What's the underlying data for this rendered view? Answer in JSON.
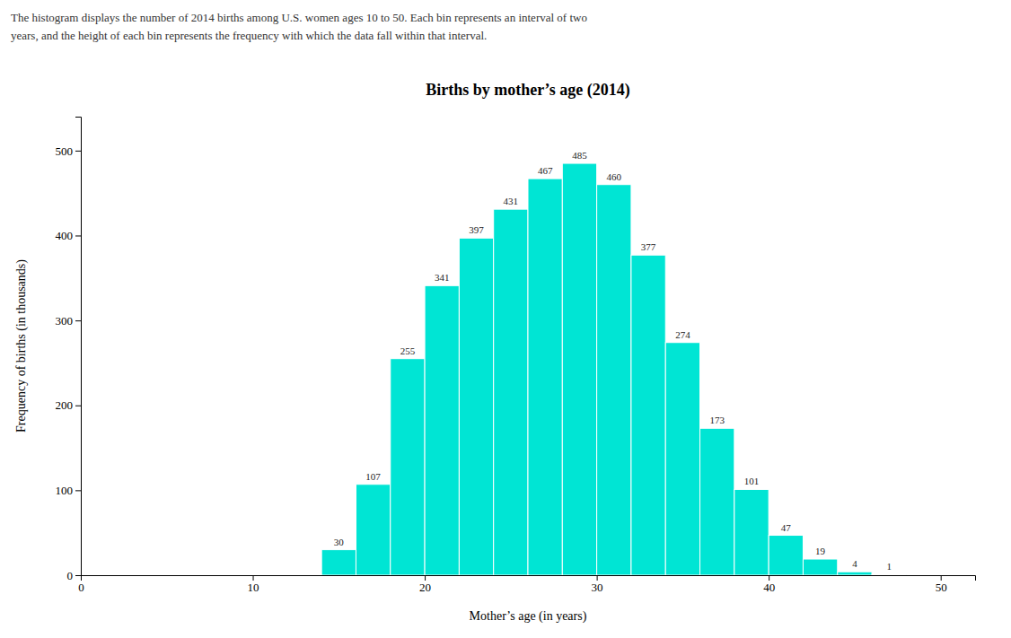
{
  "chart_data": {
    "type": "histogram",
    "title": "Births by mother’s age (2014)",
    "subtitle": [
      "The histogram displays the number of 2014 births among U.S. women ages 10 to 50. Each bin represents an interval of two",
      "years, and the height of each bin represents the frequency with which the data fall within that interval."
    ],
    "xlabel": "Mother’s age (in years)",
    "ylabel": "Frequency of births (in thousands)",
    "bins": [
      14,
      16,
      18,
      20,
      22,
      24,
      26,
      28,
      30,
      32,
      34,
      36,
      38,
      40,
      42,
      44,
      46,
      48
    ],
    "values": [
      30,
      107,
      255,
      341,
      397,
      431,
      467,
      485,
      460,
      377,
      274,
      173,
      101,
      47,
      19,
      4,
      1
    ],
    "color": "#00E5D4",
    "xlim": [
      0,
      52
    ],
    "ylim": [
      0,
      540
    ],
    "xticks": [
      0,
      10,
      20,
      30,
      40,
      50
    ],
    "yticks": [
      0,
      100,
      200,
      300,
      400,
      500
    ],
    "data_labels": true,
    "grid": false
  }
}
